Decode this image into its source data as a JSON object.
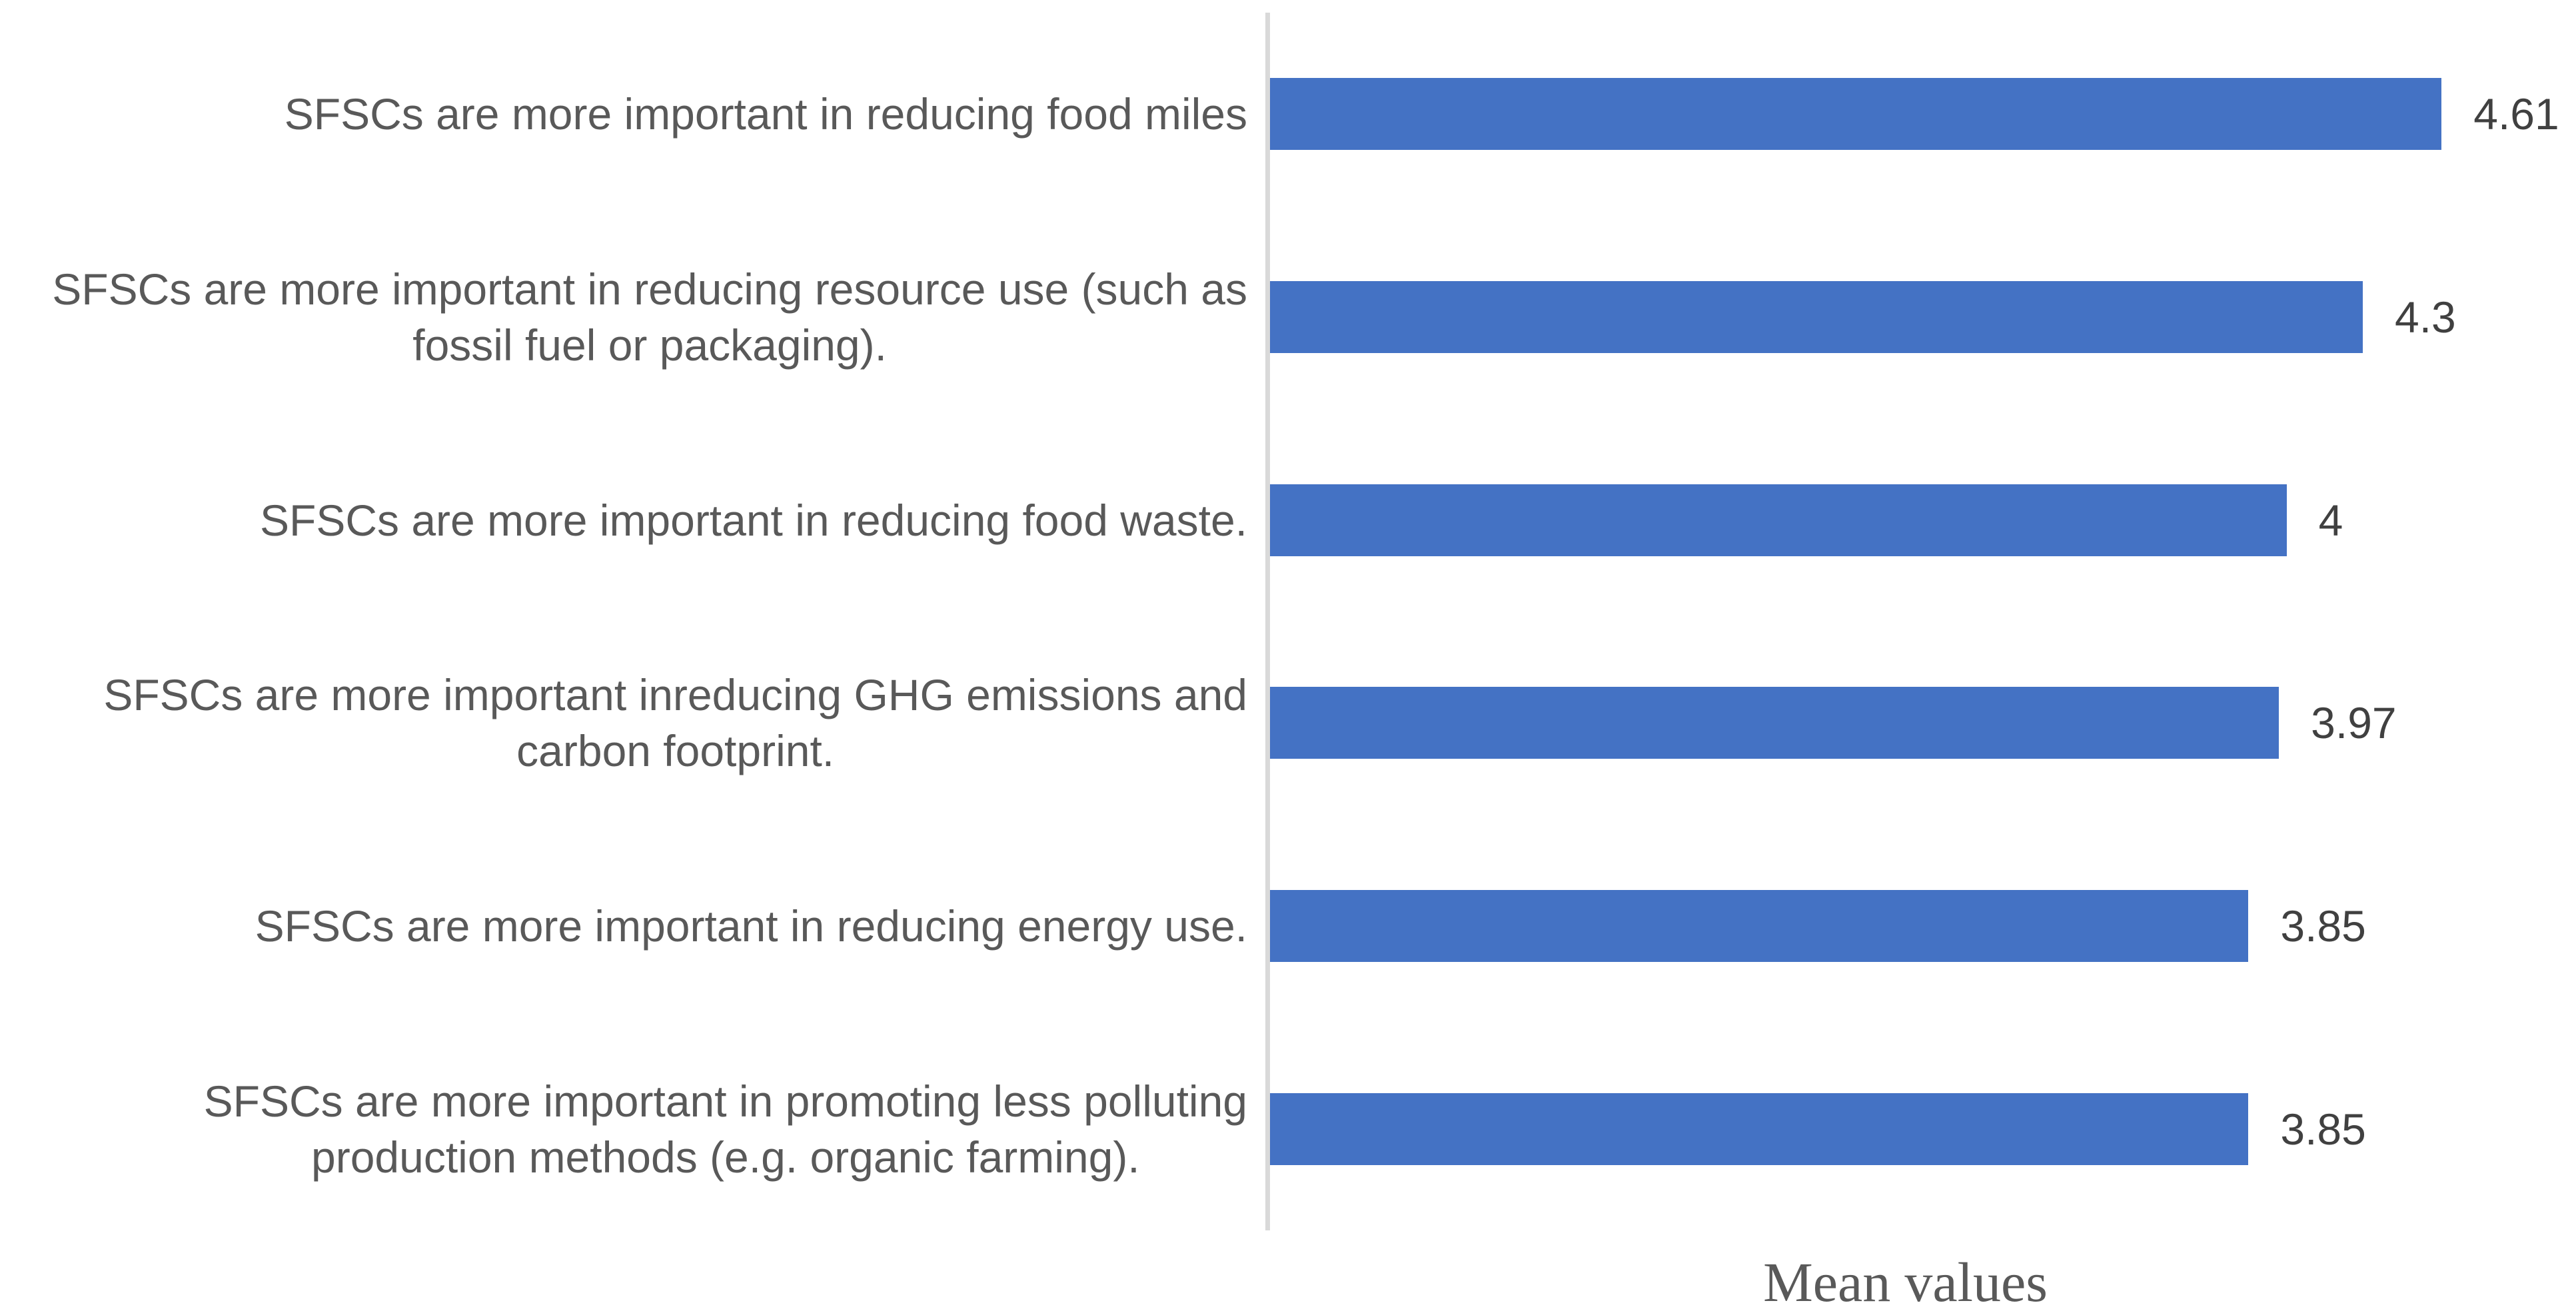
{
  "chart_data": {
    "type": "bar",
    "orientation": "horizontal",
    "title": "",
    "xlabel": "Mean values",
    "ylabel": "",
    "xlim": [
      0,
      5
    ],
    "grid": false,
    "legend": false,
    "categories": [
      "SFSCs are more important in reducing food miles",
      "SFSCs are more important in reducing resource use (such as\nfossil fuel or packaging).",
      "SFSCs are more important in reducing food waste.",
      "SFSCs are more important inreducing GHG emissions and\ncarbon footprint.",
      "SFSCs are more important in reducing energy use.",
      "SFSCs are more important in promoting less polluting\nproduction methods (e.g. organic farming)."
    ],
    "values": [
      4.61,
      4.3,
      4,
      3.97,
      3.85,
      3.85
    ],
    "value_labels": [
      "4.61",
      "4.3",
      "4",
      "3.97",
      "3.85",
      "3.85"
    ],
    "colors": {
      "bar": "#4472C4",
      "axis_line": "#D9D9D9",
      "category_label": "#595959",
      "value_label": "#404040",
      "axis_title": "#595959"
    }
  }
}
